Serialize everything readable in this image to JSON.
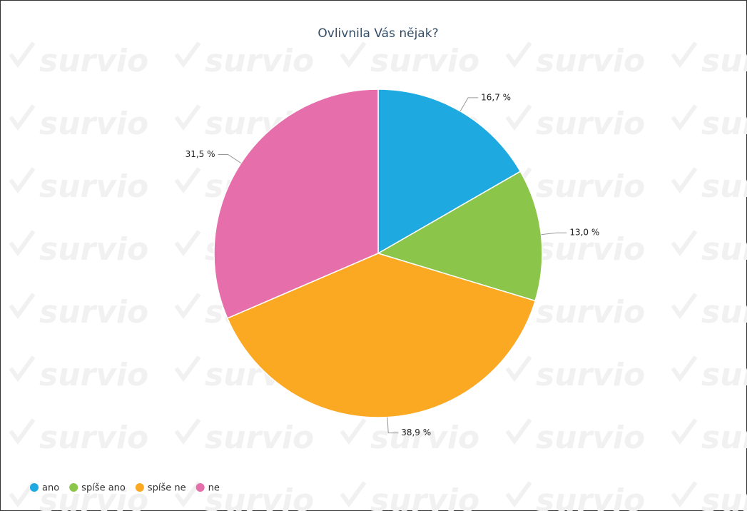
{
  "watermark": "survio",
  "chart_data": {
    "type": "pie",
    "title": "Ovlivnila Vás nějak?",
    "categories": [
      "ano",
      "spíše ano",
      "spíše ne",
      "ne"
    ],
    "values": [
      16.7,
      13.0,
      38.9,
      31.5
    ],
    "value_labels": [
      "16,7 %",
      "13,0 %",
      "38,9 %",
      "31,5 %"
    ],
    "colors": [
      "#1fa9e1",
      "#8bc54a",
      "#fba823",
      "#e56eab"
    ],
    "legend": "bottom-left"
  }
}
